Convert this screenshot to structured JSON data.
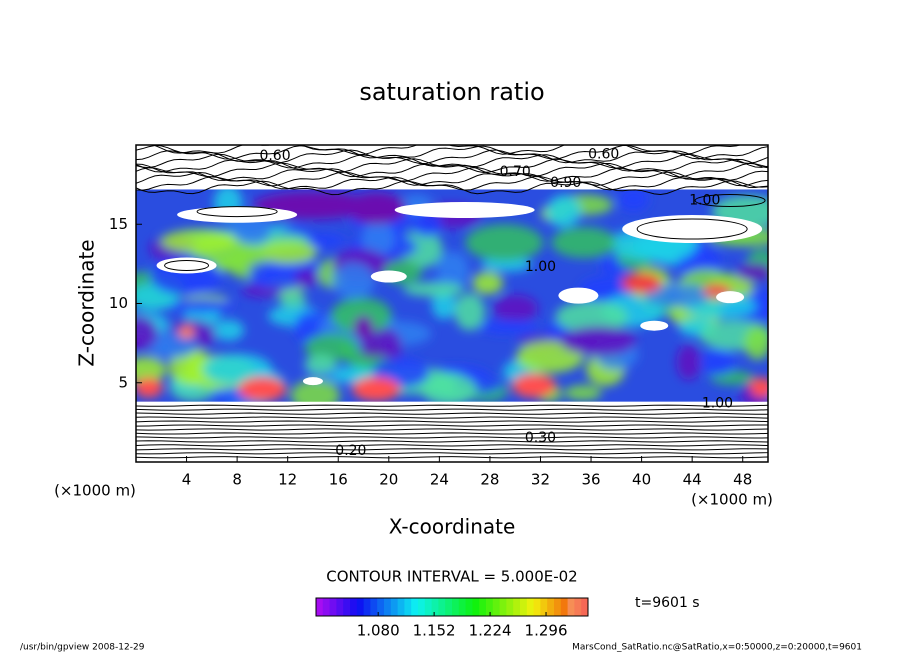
{
  "chart_data": {
    "type": "contour",
    "title": "saturation ratio",
    "x_label": "X-coordinate",
    "y_label": "Z-coordinate",
    "x_unit": "(×1000 m)",
    "y_unit": "(×1000 m)",
    "xlim": [
      0,
      50
    ],
    "xticks": [
      4,
      8,
      12,
      16,
      20,
      24,
      28,
      32,
      36,
      40,
      44,
      48
    ],
    "ylim": [
      0,
      20
    ],
    "yticks": [
      5,
      10,
      15
    ],
    "contour_labels": [
      "0.60",
      "0.60",
      "0.70",
      "0.90",
      "1.00",
      "1.00",
      "1.00",
      "0.30",
      "0.20"
    ],
    "contour_interval_text": "CONTOUR INTERVAL = 5.000E-02",
    "colorbar_lim": [
      1.0,
      1.35
    ],
    "colorbar_ticks": [
      {
        "value": 1.08,
        "label": "1.080"
      },
      {
        "value": 1.152,
        "label": "1.152"
      },
      {
        "value": 1.224,
        "label": "1.224"
      },
      {
        "value": 1.296,
        "label": "1.296"
      }
    ],
    "time_label": "t=9601 s",
    "footer_left": "/usr/bin/gpview   2008-12-29",
    "footer_right": "MarsCond_SatRatio.nc@SatRatio,x=0:50000,z=0:20000,t=9601"
  }
}
